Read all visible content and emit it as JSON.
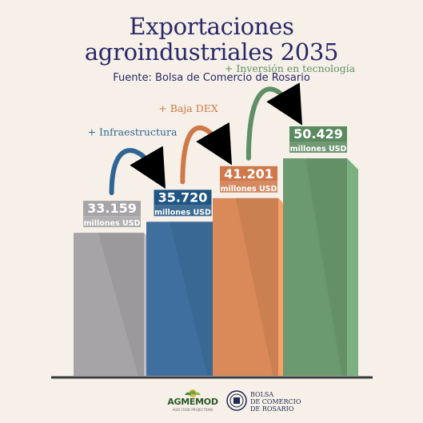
{
  "header": {
    "title_line1": "Exportaciones",
    "title_line2": "agroindustriales 2035",
    "source": "Fuente: Bolsa de Comercio de Rosario"
  },
  "chart_data": {
    "type": "bar",
    "title": "Exportaciones agroindustriales 2035",
    "unit": "millones USD",
    "categories": [
      "",
      "",
      "",
      ""
    ],
    "values": [
      33159,
      35720,
      41201,
      50429
    ],
    "value_labels": [
      "33.159",
      "35.720",
      "41.201",
      "50.429"
    ],
    "annotations": [
      "+ Infraestructura",
      "+ Baja DEX",
      "+ Inversión en tecnología"
    ],
    "colors": [
      "#a6a4a6",
      "#3f6f9f",
      "#d98a58",
      "#6b9a70"
    ],
    "label_colors": [
      "#a6a4a6",
      "#1f5583",
      "#d0784a",
      "#5a8a60"
    ],
    "annotation_colors": [
      "#2f6594",
      "#cf7848",
      "#5f8f66"
    ],
    "grid": false,
    "legend": "none"
  },
  "footer": {
    "logo1_name": "AGMEMOD",
    "logo1_sub": "AGRI FOOD PROJECTIONS",
    "logo2_line1": "BOLSA",
    "logo2_line2": "DE COMERCIO",
    "logo2_line3": "DE ROSARIO"
  }
}
